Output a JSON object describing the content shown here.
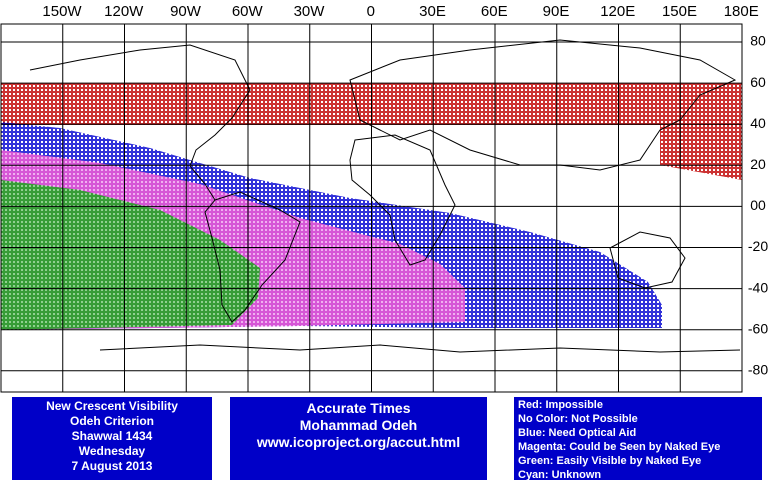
{
  "map": {
    "longitude_labels": [
      "150W",
      "120W",
      "90W",
      "60W",
      "30W",
      "0",
      "30E",
      "60E",
      "90E",
      "120E",
      "150E",
      "180E"
    ],
    "latitude_labels": [
      "80",
      "60",
      "40",
      "20",
      "00",
      "-20",
      "-40",
      "-60",
      "-80"
    ]
  },
  "info_box": {
    "lines": [
      "New Crescent Visibility",
      "Odeh Criterion",
      "Shawwal 1434",
      "Wednesday",
      "7 August 2013"
    ]
  },
  "times_box": {
    "lines": [
      "Accurate Times",
      "Mohammad Odeh",
      "www.icoproject.org/accut.html"
    ]
  },
  "legend": {
    "lines": [
      "Red: Impossible",
      "No Color: Not Possible",
      "Blue: Need Optical Aid",
      "Magenta: Could be Seen by Naked Eye",
      "Green: Easily Visible by Naked Eye",
      "Cyan: Unknown"
    ]
  }
}
